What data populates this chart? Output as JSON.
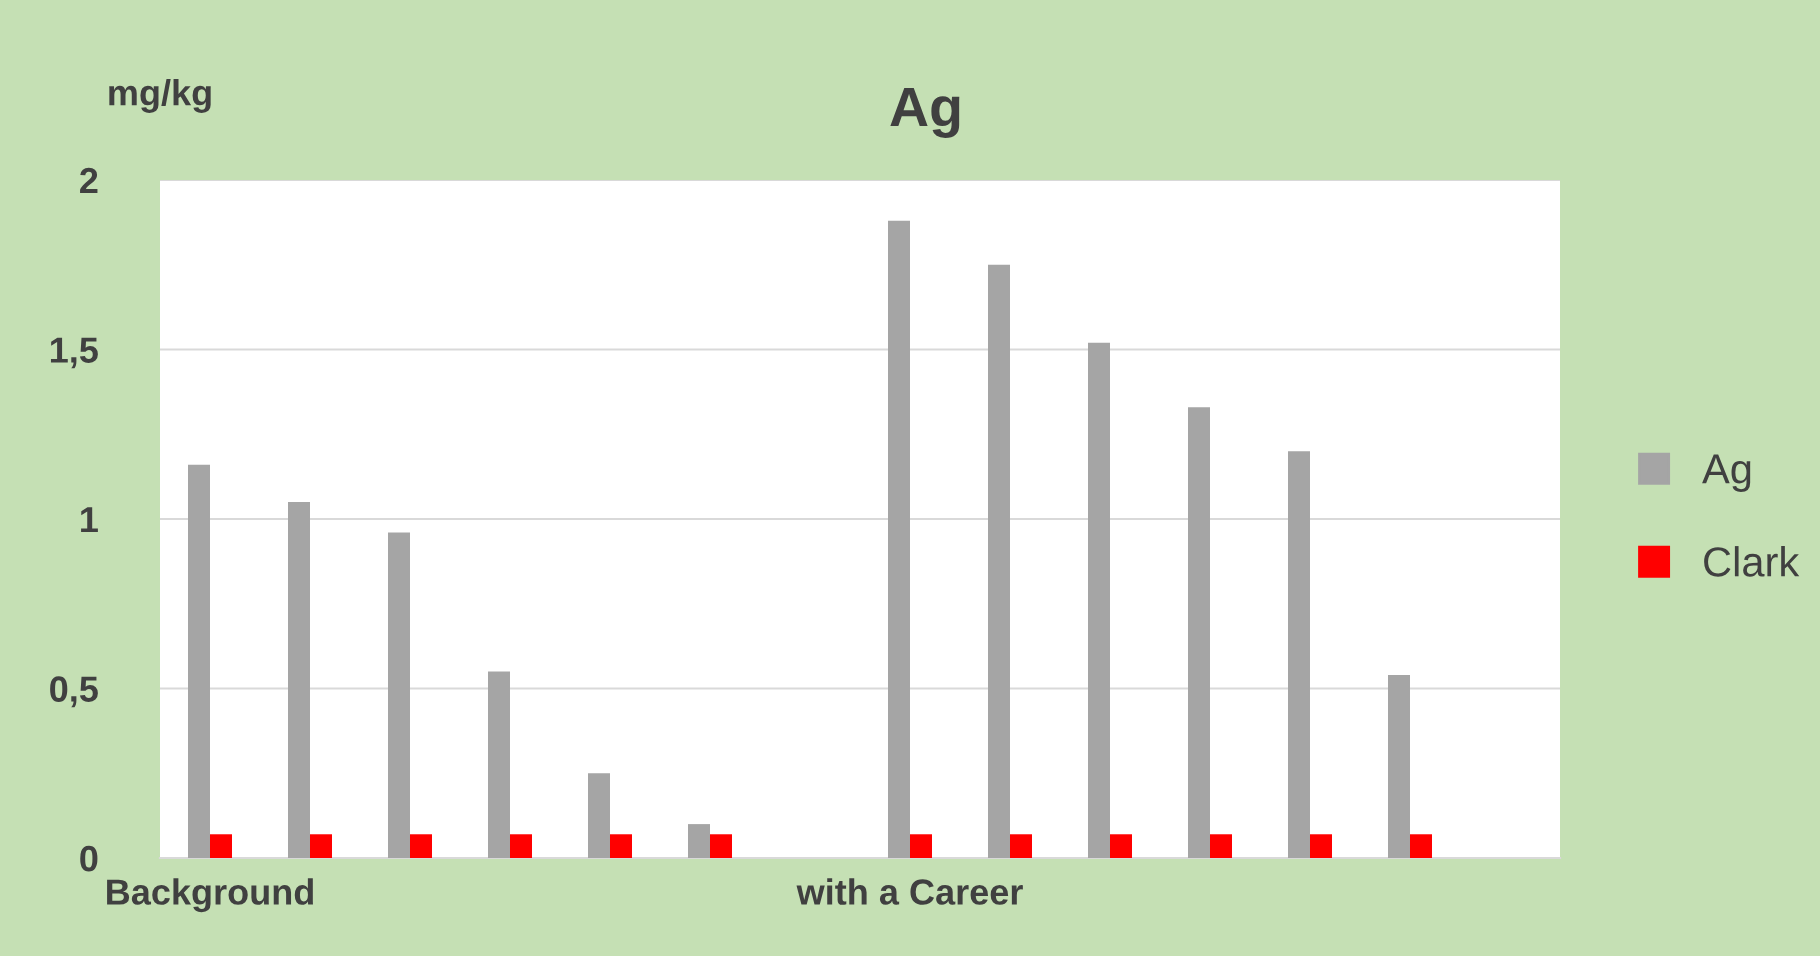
{
  "chart_data": {
    "type": "bar",
    "title": "Ag",
    "ylabel": "mg/kg",
    "categories": [
      "Background",
      null,
      null,
      null,
      null,
      null,
      null,
      "with a Career",
      null,
      null,
      null,
      null,
      null,
      null
    ],
    "series": [
      {
        "name": "Ag",
        "color": "#a5a5a5",
        "values": [
          1.16,
          1.05,
          0.96,
          0.55,
          0.25,
          0.1,
          null,
          1.88,
          1.75,
          1.52,
          1.33,
          1.2,
          0.54,
          null
        ]
      },
      {
        "name": "Clark",
        "color": "#ff0000",
        "values": [
          0.07,
          0.07,
          0.07,
          0.07,
          0.07,
          0.07,
          null,
          0.07,
          0.07,
          0.07,
          0.07,
          0.07,
          0.07,
          null
        ]
      }
    ],
    "ylim": [
      0,
      2
    ],
    "yticks": [
      0,
      {
        "value": 0.5,
        "label": "0,5"
      },
      1,
      {
        "value": 1.5,
        "label": "1,5"
      },
      2
    ],
    "grid": "y",
    "legend": "right"
  }
}
